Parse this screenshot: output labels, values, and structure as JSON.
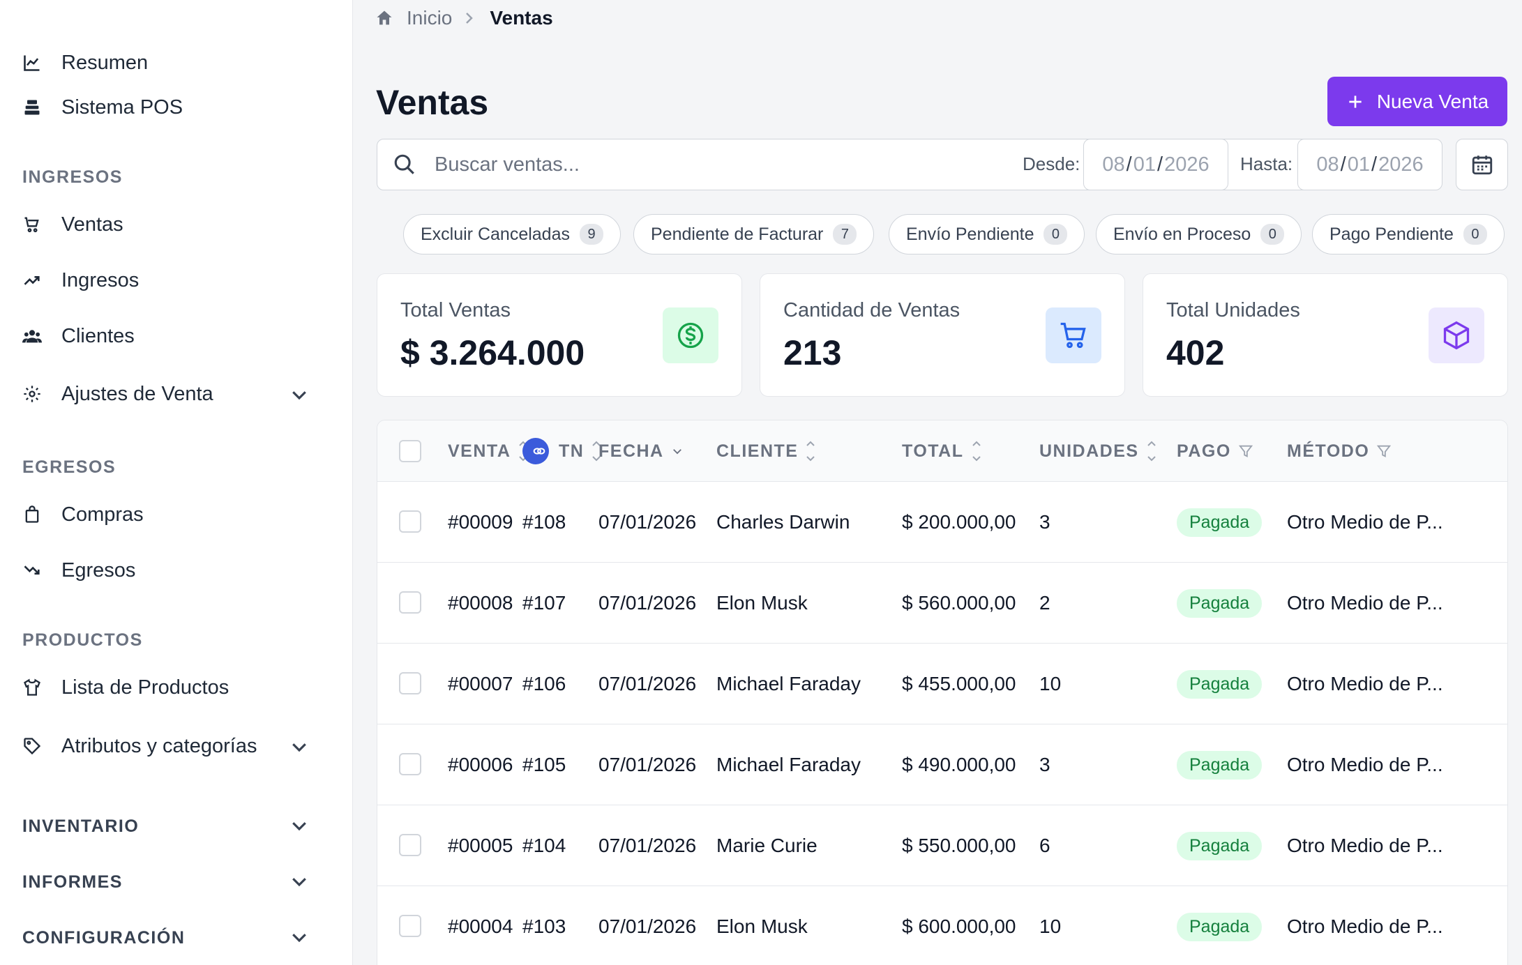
{
  "sidebar": {
    "items_top": [
      {
        "label": "Resumen",
        "icon": "chart-line-icon"
      },
      {
        "label": "Sistema POS",
        "icon": "cash-register-icon"
      }
    ],
    "sections": {
      "ingresos": "INGRESOS",
      "egresos": "EGRESOS",
      "productos": "PRODUCTOS",
      "inventario": "INVENTARIO",
      "informes": "INFORMES",
      "configuracion": "CONFIGURACIÓN"
    },
    "ingresos_items": [
      {
        "label": "Ventas",
        "icon": "cart-icon"
      },
      {
        "label": "Ingresos",
        "icon": "trending-up-icon"
      },
      {
        "label": "Clientes",
        "icon": "users-icon"
      },
      {
        "label": "Ajustes de Venta",
        "icon": "gear-icon"
      }
    ],
    "egresos_items": [
      {
        "label": "Compras",
        "icon": "shopping-bag-icon"
      },
      {
        "label": "Egresos",
        "icon": "trending-down-icon"
      }
    ],
    "productos_items": [
      {
        "label": "Lista de Productos",
        "icon": "shirt-icon"
      },
      {
        "label": "Atributos y categorías",
        "icon": "tag-icon"
      }
    ]
  },
  "breadcrumb": {
    "home": "Inicio",
    "current": "Ventas"
  },
  "page": {
    "title": "Ventas",
    "new_button": "Nueva Venta"
  },
  "filters": {
    "search_placeholder": "Buscar ventas...",
    "desde_label": "Desde:",
    "hasta_label": "Hasta:",
    "desde": {
      "mm": "08",
      "dd": "01",
      "yyyy": "2026"
    },
    "hasta": {
      "mm": "08",
      "dd": "01",
      "yyyy": "2026"
    }
  },
  "chips": [
    {
      "label": "Excluir Canceladas",
      "count": "9"
    },
    {
      "label": "Pendiente de Facturar",
      "count": "7"
    },
    {
      "label": "Envío Pendiente",
      "count": "0"
    },
    {
      "label": "Envío en Proceso",
      "count": "0"
    },
    {
      "label": "Pago Pendiente",
      "count": "0"
    }
  ],
  "stats": [
    {
      "label": "Total Ventas",
      "value": "$ 3.264.000",
      "icon": "dollar-icon",
      "color": "#16a34a",
      "bg": "#dcfce7"
    },
    {
      "label": "Cantidad de Ventas",
      "value": "213",
      "icon": "cart-icon",
      "color": "#2563eb",
      "bg": "#dbeafe"
    },
    {
      "label": "Total Unidades",
      "value": "402",
      "icon": "box-icon",
      "color": "#7c3aed",
      "bg": "#ede9fe"
    }
  ],
  "table": {
    "headers": {
      "venta": "VENTA",
      "tn": "TN",
      "fecha": "FECHA",
      "cliente": "CLIENTE",
      "total": "TOTAL",
      "unidades": "UNIDADES",
      "pago": "PAGO",
      "metodo": "MÉTODO"
    },
    "rows": [
      {
        "venta": "#00009",
        "tn": "#108",
        "fecha": "07/01/2026",
        "cliente": "Charles Darwin",
        "total": "$ 200.000,00",
        "unidades": "3",
        "pago": "Pagada",
        "metodo": "Otro Medio de P..."
      },
      {
        "venta": "#00008",
        "tn": "#107",
        "fecha": "07/01/2026",
        "cliente": "Elon Musk",
        "total": "$ 560.000,00",
        "unidades": "2",
        "pago": "Pagada",
        "metodo": "Otro Medio de P..."
      },
      {
        "venta": "#00007",
        "tn": "#106",
        "fecha": "07/01/2026",
        "cliente": "Michael Faraday",
        "total": "$ 455.000,00",
        "unidades": "10",
        "pago": "Pagada",
        "metodo": "Otro Medio de P..."
      },
      {
        "venta": "#00006",
        "tn": "#105",
        "fecha": "07/01/2026",
        "cliente": "Michael Faraday",
        "total": "$ 490.000,00",
        "unidades": "3",
        "pago": "Pagada",
        "metodo": "Otro Medio de P..."
      },
      {
        "venta": "#00005",
        "tn": "#104",
        "fecha": "07/01/2026",
        "cliente": "Marie Curie",
        "total": "$ 550.000,00",
        "unidades": "6",
        "pago": "Pagada",
        "metodo": "Otro Medio de P..."
      },
      {
        "venta": "#00004",
        "tn": "#103",
        "fecha": "07/01/2026",
        "cliente": "Elon Musk",
        "total": "$ 600.000,00",
        "unidades": "10",
        "pago": "Pagada",
        "metodo": "Otro Medio de P..."
      }
    ]
  }
}
